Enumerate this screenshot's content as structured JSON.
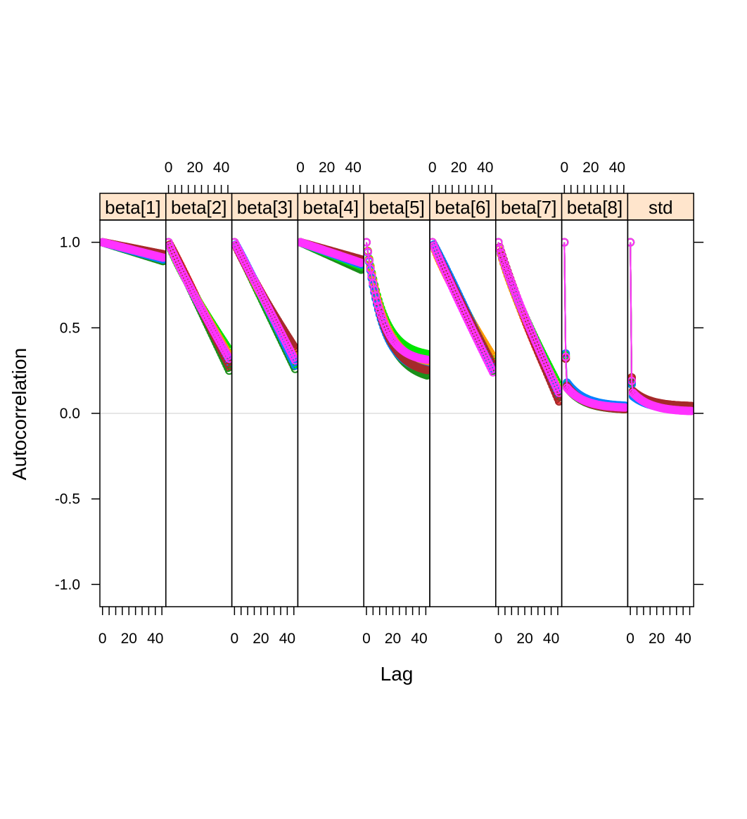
{
  "chart_data": {
    "type": "line",
    "xlabel": "Lag",
    "ylabel": "Autocorrelation",
    "ylim": [
      -1.13,
      1.13
    ],
    "xlim": [
      -2,
      48
    ],
    "y_ticks": [
      "-1.0",
      "-0.5",
      "0.0",
      "0.5",
      "1.0"
    ],
    "y_tick_values": [
      -1.0,
      -0.5,
      0.0,
      0.5,
      1.0
    ],
    "x_ticks": [
      "0",
      "20",
      "40"
    ],
    "x_tick_values": [
      0,
      20,
      40
    ],
    "max_lag": 46,
    "reference_line": 0,
    "grid": false,
    "chain_colors": [
      "#E41A1C",
      "#1A8F1A",
      "#00E600",
      "#FF9900",
      "#0080FF",
      "#A52A2A",
      "#FF33FF"
    ],
    "panels": [
      {
        "label": "beta[1]",
        "chains": [
          {
            "lag0": 1.0,
            "end": 0.93,
            "shape": 1.0
          },
          {
            "lag0": 1.0,
            "end": 0.89,
            "shape": 1.0
          },
          {
            "lag0": 1.0,
            "end": 0.9,
            "shape": 1.0
          },
          {
            "lag0": 1.0,
            "end": 0.92,
            "shape": 1.0
          },
          {
            "lag0": 1.0,
            "end": 0.9,
            "shape": 1.0
          },
          {
            "lag0": 1.0,
            "end": 0.93,
            "shape": 1.0
          },
          {
            "lag0": 1.0,
            "end": 0.91,
            "shape": 1.0
          }
        ]
      },
      {
        "label": "beta[2]",
        "chains": [
          {
            "lag0": 1.0,
            "end": 0.27,
            "shape": 1.05
          },
          {
            "lag0": 1.0,
            "end": 0.25,
            "shape": 1.0
          },
          {
            "lag0": 1.0,
            "end": 0.37,
            "shape": 0.85
          },
          {
            "lag0": 1.0,
            "end": 0.34,
            "shape": 0.9
          },
          {
            "lag0": 1.0,
            "end": 0.3,
            "shape": 0.95
          },
          {
            "lag0": 1.0,
            "end": 0.28,
            "shape": 1.0
          },
          {
            "lag0": 1.0,
            "end": 0.32,
            "shape": 0.92
          }
        ]
      },
      {
        "label": "beta[3]",
        "chains": [
          {
            "lag0": 1.0,
            "end": 0.36,
            "shape": 0.95
          },
          {
            "lag0": 1.0,
            "end": 0.26,
            "shape": 1.0
          },
          {
            "lag0": 1.0,
            "end": 0.29,
            "shape": 1.0
          },
          {
            "lag0": 1.0,
            "end": 0.33,
            "shape": 0.95
          },
          {
            "lag0": 1.0,
            "end": 0.28,
            "shape": 1.05
          },
          {
            "lag0": 1.0,
            "end": 0.38,
            "shape": 0.9
          },
          {
            "lag0": 1.0,
            "end": 0.31,
            "shape": 1.0
          }
        ]
      },
      {
        "label": "beta[4]",
        "chains": [
          {
            "lag0": 1.0,
            "end": 0.88,
            "shape": 1.0
          },
          {
            "lag0": 1.0,
            "end": 0.84,
            "shape": 1.0
          },
          {
            "lag0": 1.0,
            "end": 0.86,
            "shape": 1.0
          },
          {
            "lag0": 1.0,
            "end": 0.89,
            "shape": 1.0
          },
          {
            "lag0": 1.0,
            "end": 0.87,
            "shape": 1.0
          },
          {
            "lag0": 1.0,
            "end": 0.9,
            "shape": 1.0
          },
          {
            "lag0": 1.0,
            "end": 0.88,
            "shape": 1.0
          }
        ]
      },
      {
        "label": "beta[5]",
        "chains": [
          {
            "lag0": 1.0,
            "end": 0.25,
            "shape": 2.2
          },
          {
            "lag0": 1.0,
            "end": 0.19,
            "shape": 2.0
          },
          {
            "lag0": 1.0,
            "end": 0.33,
            "shape": 2.3
          },
          {
            "lag0": 1.0,
            "end": 0.28,
            "shape": 2.2
          },
          {
            "lag0": 1.0,
            "end": 0.24,
            "shape": 2.4
          },
          {
            "lag0": 1.0,
            "end": 0.23,
            "shape": 2.2
          },
          {
            "lag0": 1.0,
            "end": 0.3,
            "shape": 2.5
          }
        ]
      },
      {
        "label": "beta[6]",
        "chains": [
          {
            "lag0": 1.0,
            "end": 0.27,
            "shape": 1.0
          },
          {
            "lag0": 1.0,
            "end": 0.25,
            "shape": 1.0
          },
          {
            "lag0": 1.0,
            "end": 0.3,
            "shape": 0.95
          },
          {
            "lag0": 1.0,
            "end": 0.33,
            "shape": 0.85
          },
          {
            "lag0": 1.0,
            "end": 0.26,
            "shape": 1.05
          },
          {
            "lag0": 1.0,
            "end": 0.28,
            "shape": 0.95
          },
          {
            "lag0": 1.0,
            "end": 0.24,
            "shape": 0.95
          }
        ]
      },
      {
        "label": "beta[7]",
        "chains": [
          {
            "lag0": 1.0,
            "end": 0.08,
            "shape": 0.85
          },
          {
            "lag0": 1.0,
            "end": 0.1,
            "shape": 0.85
          },
          {
            "lag0": 1.0,
            "end": 0.16,
            "shape": 0.8
          },
          {
            "lag0": 1.0,
            "end": 0.13,
            "shape": 0.8
          },
          {
            "lag0": 1.0,
            "end": 0.11,
            "shape": 0.85
          },
          {
            "lag0": 1.0,
            "end": 0.07,
            "shape": 0.9
          },
          {
            "lag0": 1.0,
            "end": 0.12,
            "shape": 0.85
          }
        ]
      },
      {
        "label": "beta[8]",
        "chains": [
          {
            "lag0": 1.0,
            "lag1": 0.32,
            "lag2": 0.16,
            "end": 0.03,
            "shape": 1.0
          },
          {
            "lag0": 1.0,
            "lag1": 0.33,
            "lag2": 0.15,
            "end": 0.02,
            "shape": 1.0
          },
          {
            "lag0": 1.0,
            "lag1": 0.34,
            "lag2": 0.17,
            "end": 0.02,
            "shape": 1.0
          },
          {
            "lag0": 1.0,
            "lag1": 0.33,
            "lag2": 0.15,
            "end": 0.03,
            "shape": 1.0
          },
          {
            "lag0": 1.0,
            "lag1": 0.35,
            "lag2": 0.18,
            "end": 0.04,
            "shape": 1.0
          },
          {
            "lag0": 1.0,
            "lag1": 0.32,
            "lag2": 0.16,
            "end": 0.02,
            "shape": 1.0
          },
          {
            "lag0": 1.0,
            "lag1": 0.33,
            "lag2": 0.15,
            "end": 0.03,
            "shape": 1.0
          }
        ]
      },
      {
        "label": "std",
        "chains": [
          {
            "lag0": 1.0,
            "lag1": 0.2,
            "lag2": 0.13,
            "end": 0.04,
            "shape": 1.0
          },
          {
            "lag0": 1.0,
            "lag1": 0.18,
            "lag2": 0.12,
            "end": 0.03,
            "shape": 1.0
          },
          {
            "lag0": 1.0,
            "lag1": 0.19,
            "lag2": 0.12,
            "end": 0.02,
            "shape": 1.0
          },
          {
            "lag0": 1.0,
            "lag1": 0.17,
            "lag2": 0.11,
            "end": 0.03,
            "shape": 1.0
          },
          {
            "lag0": 1.0,
            "lag1": 0.17,
            "lag2": 0.1,
            "end": 0.02,
            "shape": 1.0
          },
          {
            "lag0": 1.0,
            "lag1": 0.21,
            "lag2": 0.13,
            "end": 0.04,
            "shape": 1.0
          },
          {
            "lag0": 1.0,
            "lag1": 0.19,
            "lag2": 0.12,
            "end": 0.01,
            "shape": 1.0
          }
        ]
      }
    ]
  }
}
